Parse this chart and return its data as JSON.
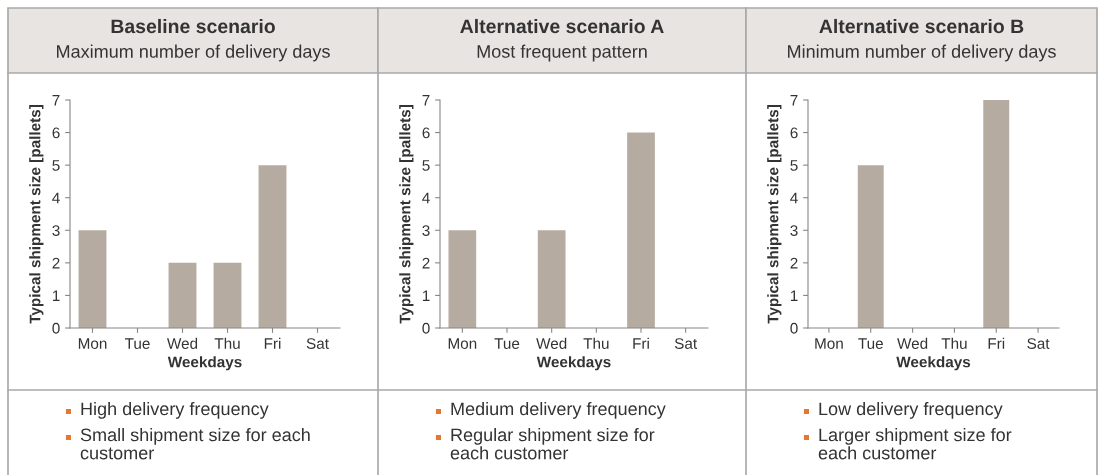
{
  "chart_data": [
    {
      "type": "bar",
      "title": "Baseline scenario",
      "subtitle": "Maximum number of delivery days",
      "xlabel": "Weekdays",
      "ylabel": "Typical shipment size [pallets]",
      "categories": [
        "Mon",
        "Tue",
        "Wed",
        "Thu",
        "Fri",
        "Sat"
      ],
      "values": [
        3,
        null,
        2,
        2,
        5,
        null
      ],
      "color": "#b5aba1",
      "ylim": [
        0,
        7
      ],
      "yticks": [
        0,
        1,
        2,
        3,
        4,
        5,
        6,
        7
      ],
      "grid": false,
      "legend": false,
      "annotations": [
        "High delivery frequency",
        "Small shipment size for each customer"
      ]
    },
    {
      "type": "bar",
      "title": "Alternative scenario A",
      "subtitle": "Most frequent pattern",
      "xlabel": "Weekdays",
      "ylabel": "Typical shipment size [pallets]",
      "categories": [
        "Mon",
        "Tue",
        "Wed",
        "Thu",
        "Fri",
        "Sat"
      ],
      "values": [
        3,
        null,
        3,
        null,
        6,
        null
      ],
      "color": "#b5aba1",
      "ylim": [
        0,
        7
      ],
      "yticks": [
        0,
        1,
        2,
        3,
        4,
        5,
        6,
        7
      ],
      "grid": false,
      "legend": false,
      "annotations": [
        "Medium delivery frequency",
        "Regular shipment size for each customer"
      ]
    },
    {
      "type": "bar",
      "title": "Alternative scenario B",
      "subtitle": "Minimum number of delivery days",
      "xlabel": "Weekdays",
      "ylabel": "Typical shipment size [pallets]",
      "categories": [
        "Mon",
        "Tue",
        "Wed",
        "Thu",
        "Fri",
        "Sat"
      ],
      "values": [
        null,
        5,
        null,
        null,
        7,
        null
      ],
      "color": "#b5aba1",
      "ylim": [
        0,
        7
      ],
      "yticks": [
        0,
        1,
        2,
        3,
        4,
        5,
        6,
        7
      ],
      "grid": false,
      "legend": false,
      "annotations": [
        "Low delivery frequency",
        "Larger shipment size for each customer"
      ]
    }
  ]
}
